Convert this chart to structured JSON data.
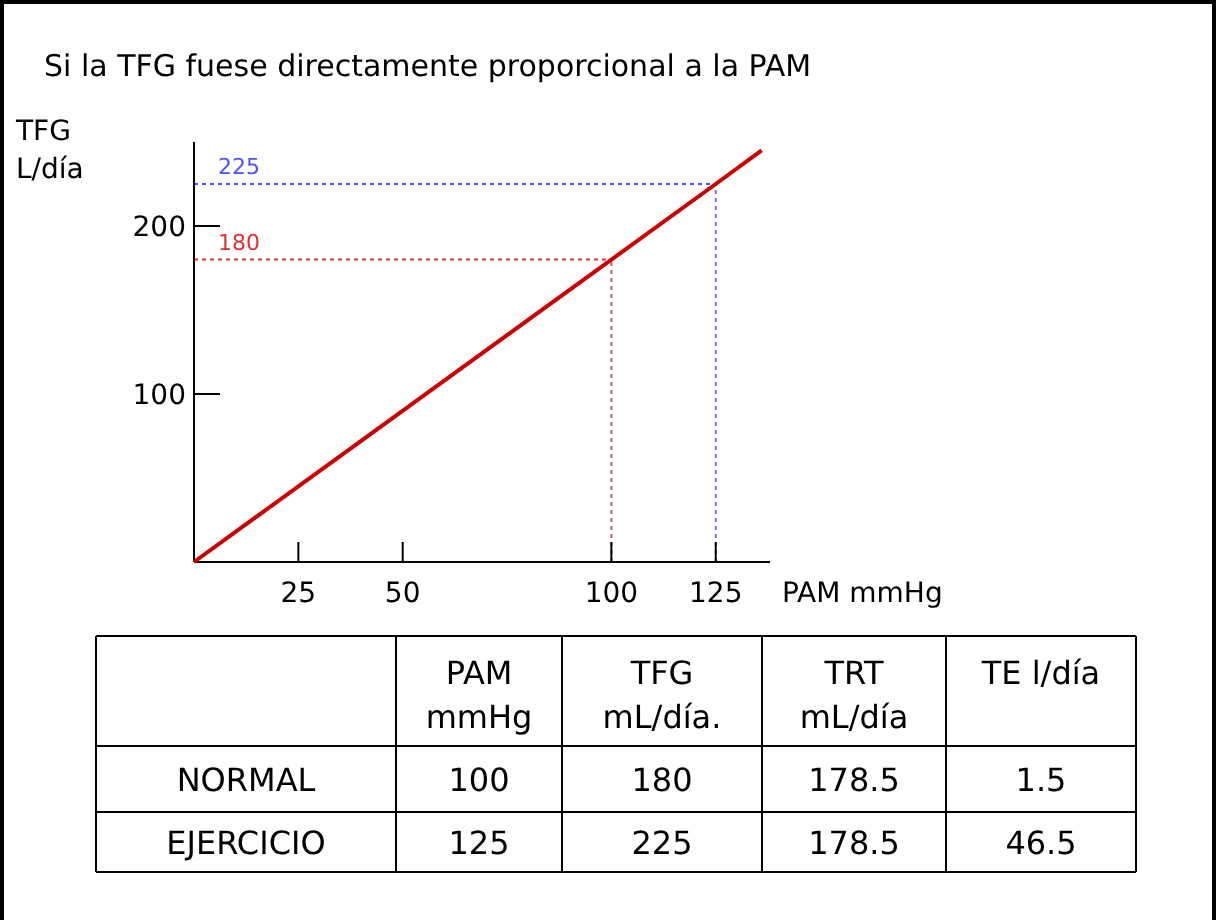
{
  "chart_data": [
    {
      "type": "line",
      "title": "Si la TFG fuese directamente proporcional a la PAM",
      "xlabel": "PAM mmHg",
      "ylabel": "TFG\nL/día",
      "x": [
        0,
        100,
        125,
        136
      ],
      "series": [
        {
          "color": "#cc0000",
          "values": [
            0,
            180,
            225,
            245
          ]
        }
      ],
      "xlim": [
        0,
        138
      ],
      "xticks": [
        25,
        50,
        100,
        125
      ],
      "ylim": [
        0,
        250
      ],
      "yticks": [
        100,
        200
      ],
      "grid": false,
      "marker": "none",
      "line_style": "solid",
      "ref_lines": [
        {
          "axis": "y",
          "value": 180,
          "label": "180",
          "color": "#e03030",
          "line_style": "dotted"
        },
        {
          "axis": "y",
          "value": 225,
          "label": "225",
          "color": "#5050ff",
          "line_style": "dotted"
        },
        {
          "axis": "x",
          "value": 100,
          "label": null,
          "color": "#c06060",
          "line_style": "dotted"
        },
        {
          "axis": "x",
          "value": 125,
          "label": null,
          "color": "#7070ff",
          "line_style": "dotted"
        }
      ]
    },
    {
      "type": "other",
      "categories": [
        "PAM\nmmHg",
        "TFG\nmL/día.",
        "TRT\nmL/día",
        "TE l/día"
      ],
      "y_categories": [
        "NORMAL",
        "EJERCICIO"
      ],
      "cell_labels": [
        [
          "100",
          "180",
          "178.5",
          "1.5"
        ],
        [
          "125",
          "225",
          "178.5",
          "46.5"
        ]
      ],
      "data_labels": true
    }
  ]
}
